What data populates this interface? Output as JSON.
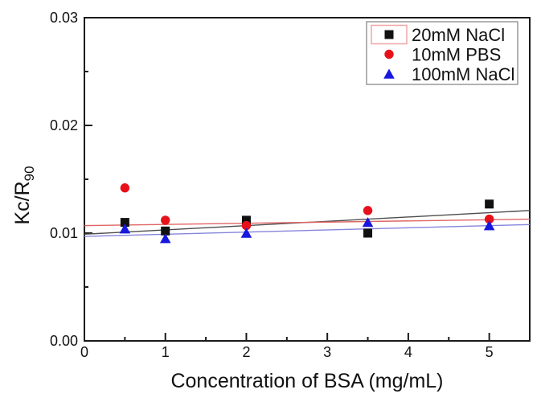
{
  "chart_data": {
    "type": "scatter",
    "title": "",
    "xlabel": "Concentration of BSA (mg/mL)",
    "ylabel": "Kc/R",
    "ylabel_subscript": "90",
    "xlim": [
      0,
      5.5
    ],
    "ylim": [
      0,
      0.03
    ],
    "x_major_ticks": [
      0,
      1,
      2,
      3,
      4,
      5
    ],
    "x_tick_labels": [
      "0",
      "1",
      "2",
      "3",
      "4",
      "5"
    ],
    "x_minor_step": 0.5,
    "y_major_ticks": [
      0,
      0.01,
      0.02,
      0.03
    ],
    "y_tick_labels": [
      "0.00",
      "0.01",
      "0.02",
      "0.03"
    ],
    "y_minor_step": 0.005,
    "grid": false,
    "background_color": "#ffffff",
    "axis_color": "#1a1a1a",
    "legend_position": "top-right",
    "x": [
      0.5,
      1,
      2,
      3.5,
      5
    ],
    "series": [
      {
        "name": "20mM NaCl",
        "marker": "square",
        "color": "#111111",
        "values": [
          0.011,
          0.0102,
          0.0112,
          0.01,
          0.0127
        ],
        "fit_line": {
          "x": [
            0,
            5.5
          ],
          "y": [
            0.0099,
            0.0121
          ],
          "color": "#4d4d4d"
        }
      },
      {
        "name": "10mM PBS",
        "marker": "circle",
        "color": "#e8111a",
        "values": [
          0.0142,
          0.0112,
          0.0107,
          0.0121,
          0.0113
        ],
        "fit_line": {
          "x": [
            0,
            5.5
          ],
          "y": [
            0.0107,
            0.0113
          ],
          "color": "#e06565"
        }
      },
      {
        "name": "100mM NaCl",
        "marker": "triangle",
        "color": "#1717dd",
        "values": [
          0.0104,
          0.0095,
          0.01,
          0.011,
          0.0107
        ],
        "fit_line": {
          "x": [
            0,
            5.5
          ],
          "y": [
            0.0097,
            0.0108
          ],
          "color": "#8585dd"
        }
      }
    ],
    "legend": {
      "items": [
        "20mM NaCl",
        "10mM PBS",
        "100mM NaCl"
      ],
      "border_color": "#999999",
      "highlight_box": {
        "series_index": 0,
        "color": "#f0a5a5"
      }
    }
  }
}
